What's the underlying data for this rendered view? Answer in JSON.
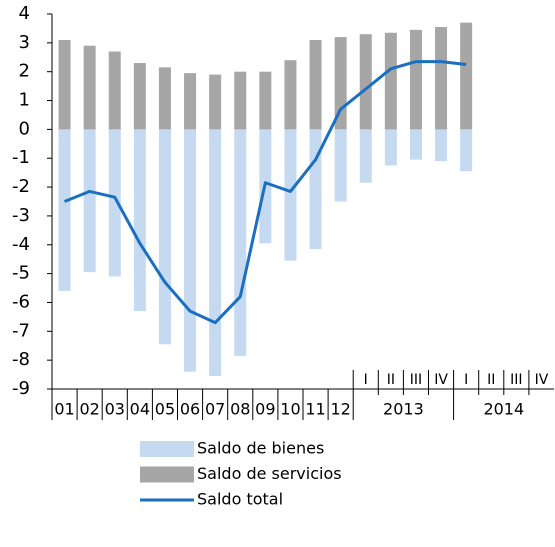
{
  "chart_data": {
    "type": "bar-line",
    "categories": [
      "01",
      "02",
      "03",
      "04",
      "05",
      "06",
      "07",
      "08",
      "09",
      "10",
      "11",
      "12",
      "I",
      "II",
      "III",
      "IV",
      "I",
      "II",
      "III",
      "IV"
    ],
    "x_groups": [
      "2013",
      "2014"
    ],
    "series": [
      {
        "name": "Saldo de bienes",
        "color": "#c5d9f1",
        "type": "bar",
        "values": [
          -5.6,
          -4.95,
          -5.1,
          -6.3,
          -7.45,
          -8.4,
          -8.55,
          -7.85,
          -3.95,
          -4.55,
          -4.15,
          -2.5,
          -1.85,
          -1.25,
          -1.05,
          -1.1,
          -1.45,
          null,
          null,
          null
        ]
      },
      {
        "name": "Saldo de servicios",
        "color": "#a6a6a6",
        "type": "bar",
        "values": [
          3.1,
          2.9,
          2.7,
          2.3,
          2.15,
          1.95,
          1.9,
          2.0,
          2.0,
          2.4,
          3.1,
          3.2,
          3.3,
          3.35,
          3.45,
          3.55,
          3.7,
          null,
          null,
          null
        ]
      },
      {
        "name": "Saldo total",
        "color": "#1a6fc0",
        "type": "line",
        "values": [
          -2.5,
          -2.15,
          -2.35,
          -3.95,
          -5.3,
          -6.3,
          -6.7,
          -5.8,
          -1.85,
          -2.15,
          -1.05,
          0.7,
          1.4,
          2.1,
          2.35,
          2.35,
          2.25,
          null,
          null,
          null
        ]
      }
    ],
    "ylim": [
      -9,
      4
    ],
    "yticks": [
      -9,
      -8,
      -7,
      -6,
      -5,
      -4,
      -3,
      -2,
      -1,
      0,
      1,
      2,
      3,
      4
    ]
  }
}
